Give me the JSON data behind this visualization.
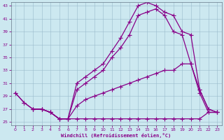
{
  "xlabel": "Windchill (Refroidissement éolien,°C)",
  "bg_color": "#cce8f0",
  "line_color": "#880088",
  "marker": "+",
  "markersize": 4,
  "linewidth": 0.9,
  "xlim": [
    -0.5,
    23.5
  ],
  "ylim": [
    24.5,
    43.5
  ],
  "xticks": [
    0,
    1,
    2,
    3,
    4,
    5,
    6,
    7,
    8,
    9,
    10,
    11,
    12,
    13,
    14,
    15,
    16,
    17,
    18,
    19,
    20,
    21,
    22,
    23
  ],
  "yticks": [
    25,
    27,
    29,
    31,
    33,
    35,
    37,
    39,
    41,
    43
  ],
  "lines": [
    {
      "x": [
        2,
        3,
        4,
        5,
        6,
        7,
        8,
        9,
        10,
        11,
        12,
        13,
        14,
        15,
        16,
        17,
        18,
        19,
        20,
        21,
        22,
        23
      ],
      "y": [
        27,
        27,
        26.5,
        25.5,
        25.5,
        31,
        32,
        33,
        34,
        36,
        38,
        40.5,
        43,
        43.5,
        43,
        42,
        41.5,
        39,
        38.5,
        30,
        27,
        26.5
      ]
    },
    {
      "x": [
        0,
        1,
        2,
        3,
        4,
        5,
        6,
        7,
        8,
        9,
        10,
        11,
        12,
        13,
        14,
        15,
        16,
        17,
        18,
        19,
        20,
        21,
        22,
        23
      ],
      "y": [
        29.5,
        28,
        27,
        27,
        26.5,
        25.5,
        25.5,
        30,
        31,
        32,
        33,
        35,
        36.5,
        38.5,
        41.5,
        42,
        42.5,
        41.5,
        39,
        38.5,
        34,
        29.5,
        26.5,
        26.5
      ]
    },
    {
      "x": [
        0,
        1,
        2,
        3,
        4,
        5,
        6,
        7,
        8,
        9,
        10,
        11,
        12,
        13,
        14,
        15,
        16,
        17,
        18,
        19,
        20,
        21,
        22,
        23
      ],
      "y": [
        29.5,
        28,
        27,
        27,
        26.5,
        25.5,
        25.5,
        27.5,
        28.5,
        29,
        29.5,
        30,
        30.5,
        31,
        31.5,
        32,
        32.5,
        33,
        33,
        34,
        34,
        30,
        27,
        26.5
      ]
    },
    {
      "x": [
        2,
        3,
        4,
        5,
        6,
        7,
        8,
        9,
        10,
        11,
        12,
        13,
        14,
        15,
        16,
        17,
        18,
        19,
        20,
        21,
        22,
        23
      ],
      "y": [
        27,
        27,
        26.5,
        25.5,
        25.5,
        25.5,
        25.5,
        25.5,
        25.5,
        25.5,
        25.5,
        25.5,
        25.5,
        25.5,
        25.5,
        25.5,
        25.5,
        25.5,
        25.5,
        25.5,
        26.5,
        26.5
      ]
    }
  ]
}
